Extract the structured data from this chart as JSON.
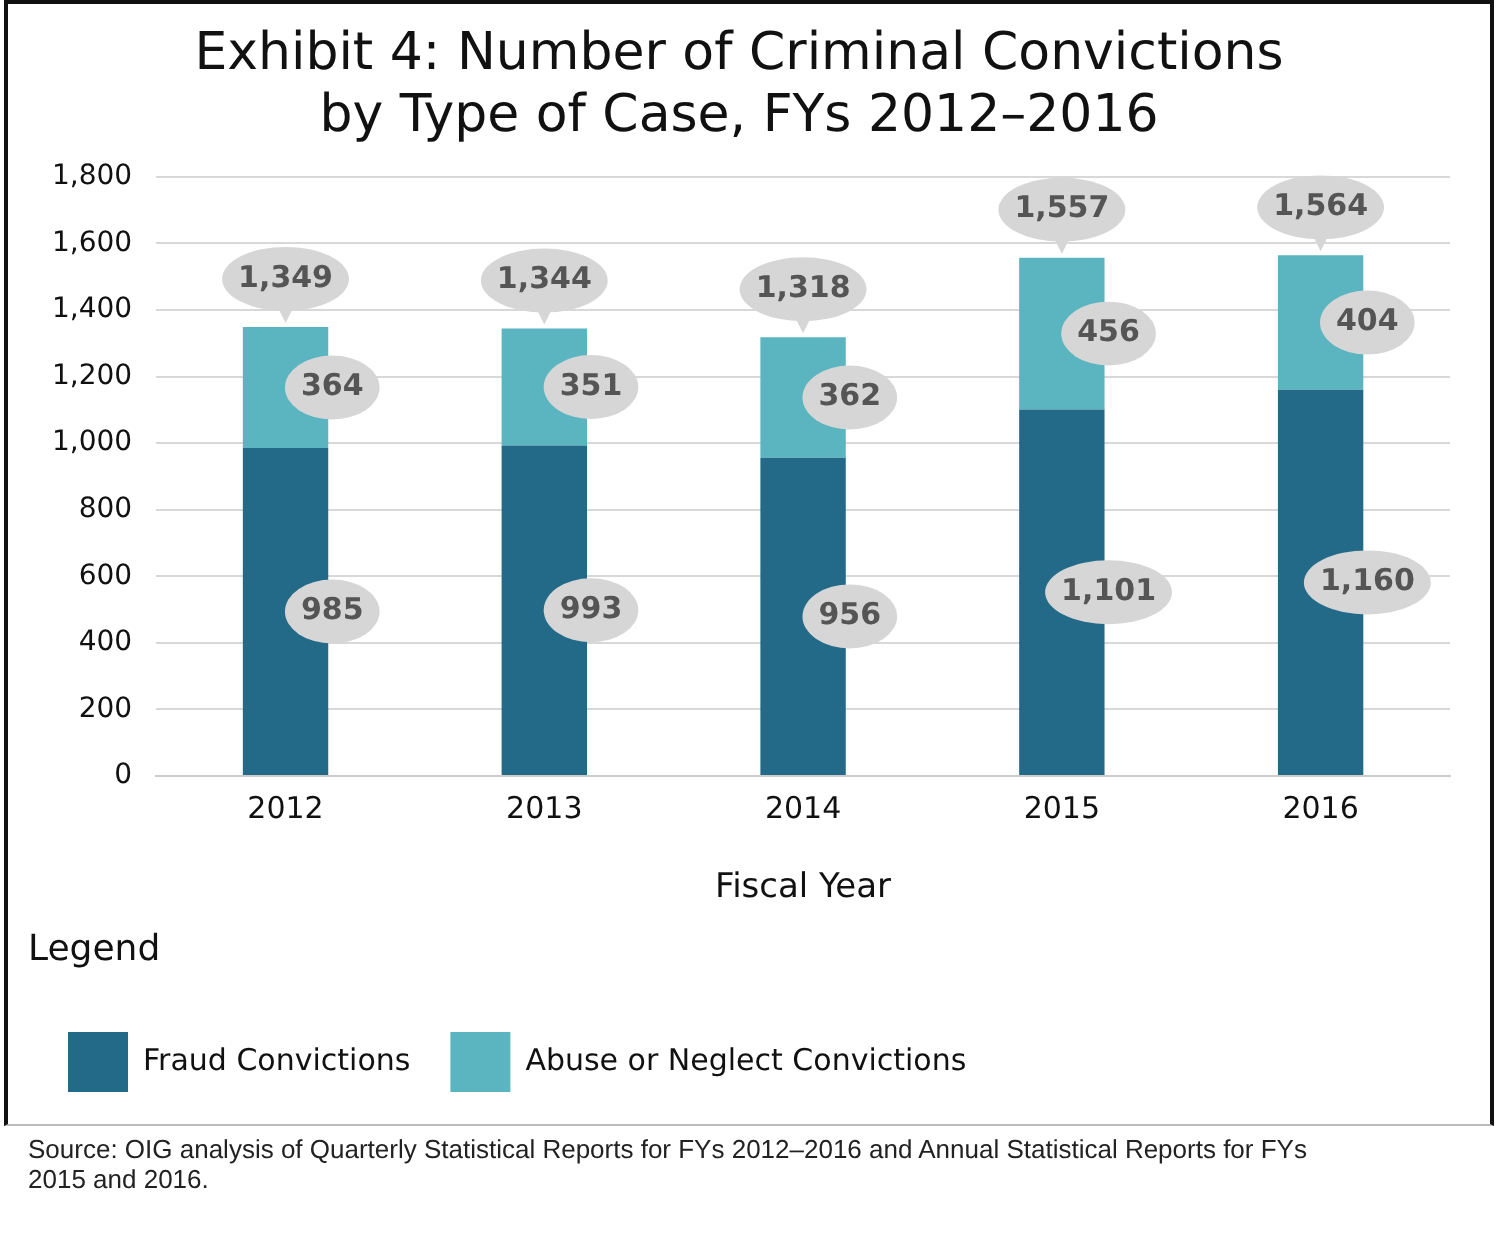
{
  "chart_data": {
    "type": "bar",
    "title": [
      "Exhibit 4: Number of Criminal Convictions",
      "by Type of Case, FYs 2012–2016"
    ],
    "xlabel": "Fiscal Year",
    "legend_title": "Legend",
    "legend": "bottom",
    "stacked": true,
    "grid": "y",
    "categories": [
      "2012",
      "2013",
      "2014",
      "2015",
      "2016"
    ],
    "series": [
      {
        "name": "Fraud Convictions",
        "color": "#236a89",
        "values": [
          985,
          993,
          956,
          1101,
          1160
        ],
        "value_labels": [
          "985",
          "993",
          "956",
          "1,101",
          "1,160"
        ]
      },
      {
        "name": "Abuse or Neglect Convictions",
        "color": "#5ab5c1",
        "values": [
          364,
          351,
          362,
          456,
          404
        ],
        "value_labels": [
          "364",
          "351",
          "362",
          "456",
          "404"
        ]
      }
    ],
    "totals": [
      "1,349",
      "1,344",
      "1,318",
      "1,557",
      "1,564"
    ],
    "ylim": [
      0,
      1800
    ],
    "yticks": [
      0,
      {
        "value": 200,
        "label": "200"
      },
      400,
      600,
      800,
      {
        "value": 1000,
        "label": "1,000"
      },
      {
        "value": 1200,
        "label": "1,200"
      },
      {
        "value": 1400,
        "label": "1,400"
      },
      {
        "value": 1600,
        "label": "1,600"
      },
      {
        "value": 1800,
        "label": "1,800"
      }
    ],
    "annotations": [
      "Source: OIG analysis of Quarterly Statistical Reports for FYs 2012–2016 and Annual Statistical Reports for FYs 2015 and 2016."
    ]
  }
}
